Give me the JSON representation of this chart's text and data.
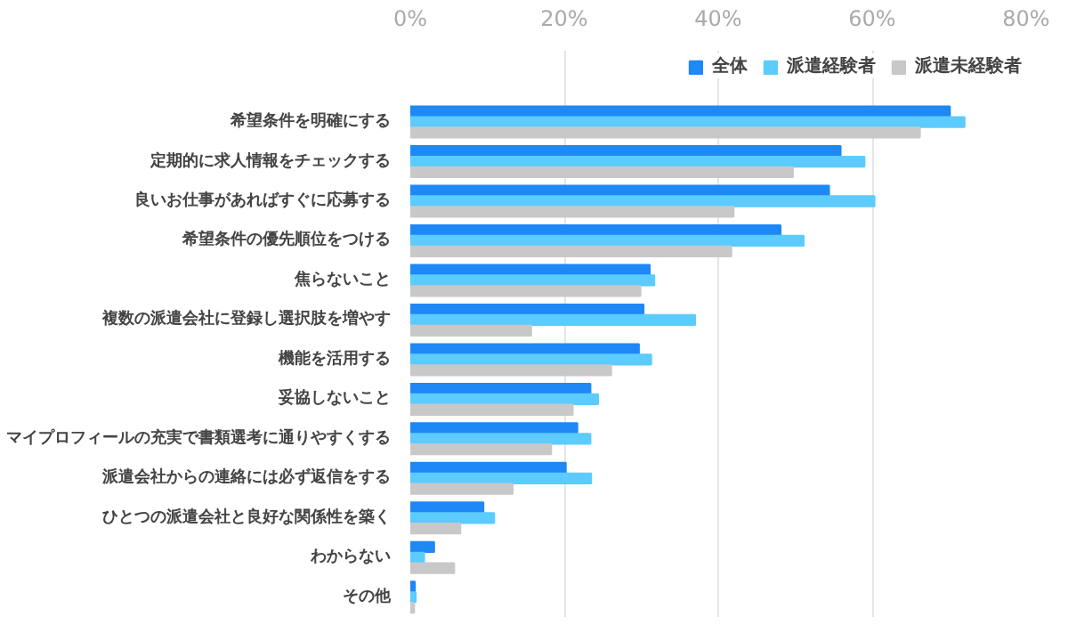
{
  "chart_data": {
    "type": "bar",
    "orientation": "horizontal",
    "categories": [
      "希望条件を明確にする",
      "定期的に求人情報をチェックする",
      "良いお仕事があればすぐに応募する",
      "希望条件の優先順位をつける",
      "焦らないこと",
      "複数の派遣会社に登録し選択肢を増やす",
      "機能を活用する",
      "妥協しないこと",
      "マイプロフィールの充実で書類選考に通りやすくする",
      "派遣会社からの連絡には必ず返信をする",
      "ひとつの派遣会社と良好な関係性を築く",
      "わからない",
      "その他"
    ],
    "series": [
      {
        "name": "全体",
        "color": "#1e88f5",
        "values": [
          70.1,
          55.9,
          54.4,
          48.1,
          31.1,
          30.3,
          29.7,
          23.4,
          21.7,
          20.2,
          9.5,
          3.1,
          0.6
        ]
      },
      {
        "name": "派遣経験者",
        "color": "#5ccbff",
        "values": [
          72.0,
          59.0,
          60.3,
          51.1,
          31.7,
          37.0,
          31.3,
          24.4,
          23.4,
          23.5,
          10.9,
          1.8,
          0.7
        ]
      },
      {
        "name": "派遣未経験者",
        "color": "#c8c8c8",
        "values": [
          66.2,
          49.7,
          42.0,
          41.7,
          29.9,
          15.7,
          26.1,
          21.1,
          18.3,
          13.3,
          6.5,
          5.7,
          0.5
        ]
      }
    ],
    "xlim": [
      0,
      80
    ],
    "xticks": [
      {
        "value": 0,
        "label": "0%"
      },
      {
        "value": 20,
        "label": "20%"
      },
      {
        "value": 40,
        "label": "40%"
      },
      {
        "value": 60,
        "label": "60%"
      },
      {
        "value": 80,
        "label": "80%"
      }
    ],
    "grid": "x",
    "legend": "top right"
  }
}
